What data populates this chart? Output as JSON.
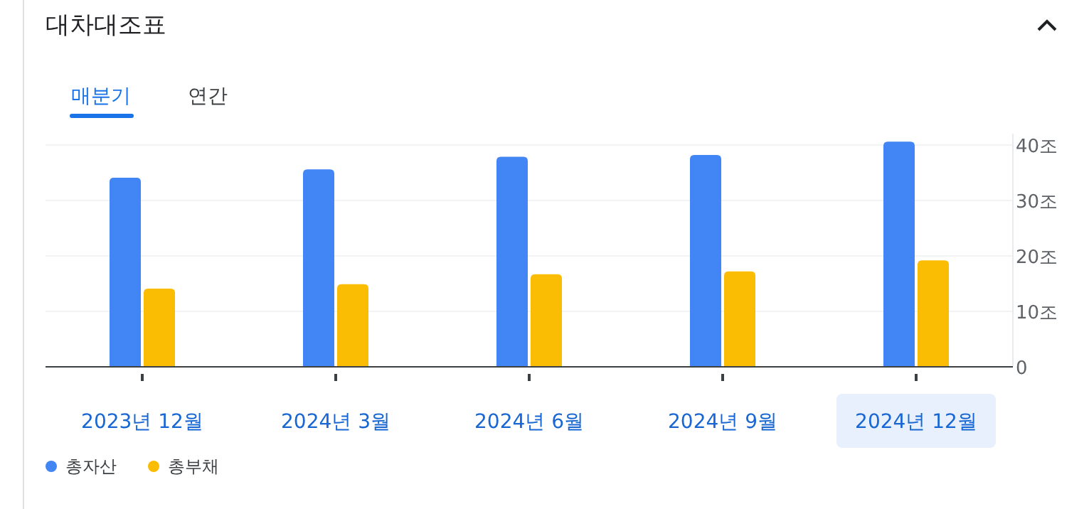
{
  "chart_data": {
    "type": "bar",
    "title": "대차대조표",
    "annotations": [
      "매분기",
      "연간"
    ],
    "categories": [
      "2023년 12월",
      "2024년 3월",
      "2024년 6월",
      "2024년 9월",
      "2024년 12월"
    ],
    "series": [
      {
        "name": "총자산",
        "color": "#4285f4",
        "values": [
          34.1,
          35.6,
          37.9,
          38.2,
          40.6
        ]
      },
      {
        "name": "총부채",
        "color": "#fbbc04",
        "values": [
          14.1,
          14.9,
          16.7,
          17.2,
          19.2
        ]
      }
    ],
    "ylim": [
      0,
      42
    ],
    "yticks": [
      0,
      {
        "value": 10,
        "label": "10조"
      },
      {
        "value": 20,
        "label": "20조"
      },
      {
        "value": 30,
        "label": "30조"
      },
      {
        "value": 40,
        "label": "40조"
      }
    ],
    "grid": "y",
    "legend": "bottom left"
  }
}
